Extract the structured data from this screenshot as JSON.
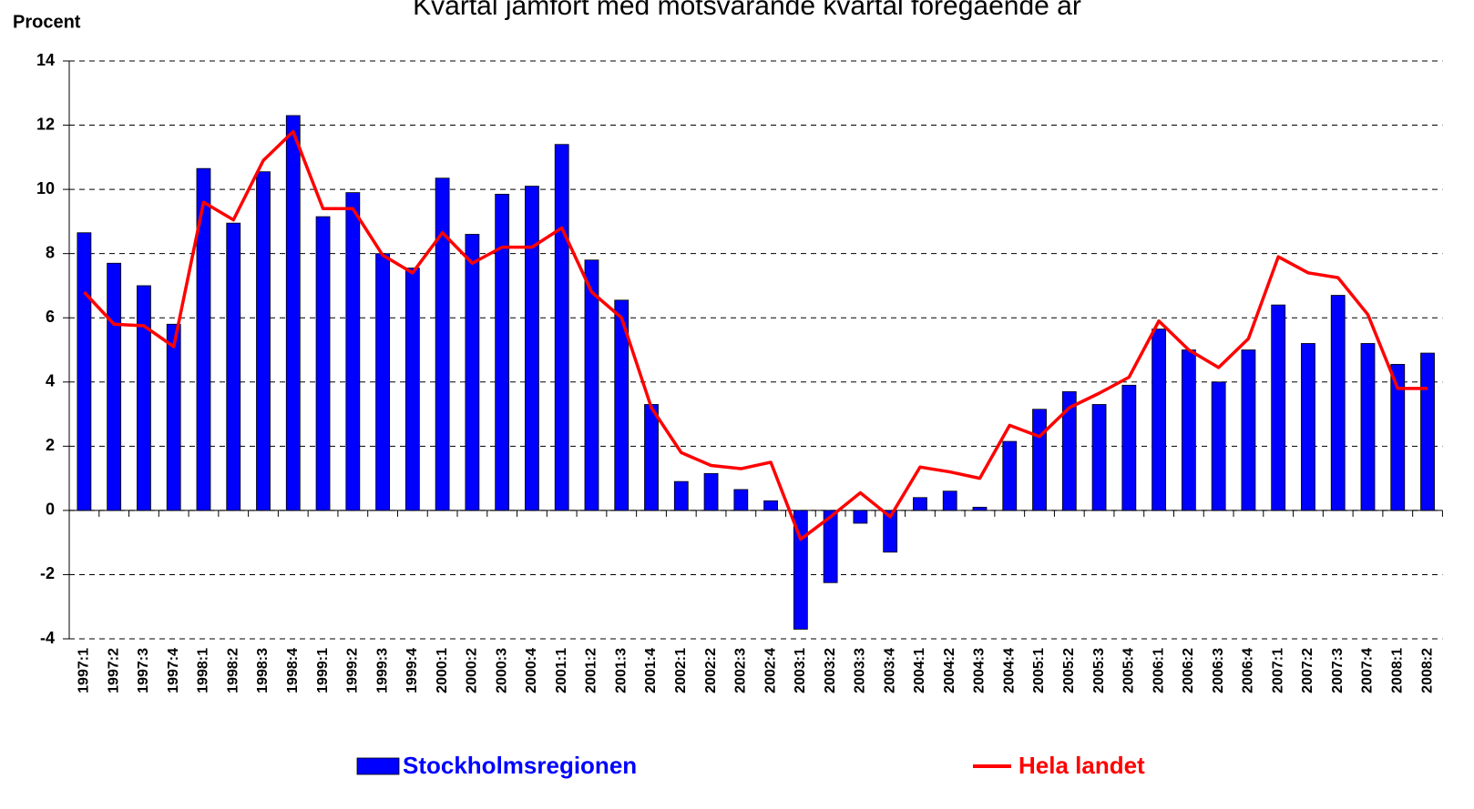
{
  "chart_data": {
    "type": "bar_line",
    "title": "Kvartal jämfört med motsvarande kvartal föregående år",
    "y_label": "Procent",
    "categories": [
      "1997:1",
      "1997:2",
      "1997:3",
      "1997:4",
      "1998:1",
      "1998:2",
      "1998:3",
      "1998:4",
      "1999:1",
      "1999:2",
      "1999:3",
      "1999:4",
      "2000:1",
      "2000:2",
      "2000:3",
      "2000:4",
      "2001:1",
      "2001:2",
      "2001:3",
      "2001:4",
      "2002:1",
      "2002:2",
      "2002:3",
      "2002:4",
      "2003:1",
      "2003:2",
      "2003:3",
      "2003:4",
      "2004:1",
      "2004:2",
      "2004:3",
      "2004:4",
      "2005:1",
      "2005:2",
      "2005:3",
      "2005:4",
      "2006:1",
      "2006:2",
      "2006:3",
      "2006:4",
      "2007:1",
      "2007:2",
      "2007:3",
      "2007:4",
      "2008:1",
      "2008:2"
    ],
    "series": [
      {
        "name": "Stockholmsregionen",
        "type": "bar",
        "color": "#0000ff",
        "values": [
          8.65,
          7.7,
          7.0,
          5.8,
          10.65,
          8.95,
          10.55,
          12.3,
          9.15,
          9.9,
          8.0,
          7.55,
          10.35,
          8.6,
          9.85,
          10.1,
          11.4,
          7.8,
          6.55,
          3.3,
          0.9,
          1.15,
          0.65,
          0.3,
          -3.7,
          -2.25,
          -0.4,
          -1.3,
          0.4,
          0.6,
          0.1,
          2.15,
          3.15,
          3.7,
          3.3,
          3.9,
          5.65,
          5.0,
          4.0,
          5.0,
          6.4,
          5.2,
          6.7,
          5.2,
          4.55,
          4.9
        ]
      },
      {
        "name": "Hela landet",
        "type": "line",
        "color": "#ff0000",
        "values": [
          6.8,
          5.8,
          5.75,
          5.1,
          9.6,
          9.05,
          10.9,
          11.8,
          9.4,
          9.4,
          7.95,
          7.4,
          8.65,
          7.7,
          8.2,
          8.2,
          8.8,
          6.8,
          6.0,
          3.2,
          1.8,
          1.4,
          1.3,
          1.5,
          -0.9,
          -0.2,
          0.55,
          -0.2,
          1.35,
          1.2,
          1.0,
          2.65,
          2.3,
          3.2,
          3.65,
          4.15,
          5.9,
          5.0,
          4.45,
          5.35,
          7.9,
          7.4,
          7.25,
          6.1,
          3.8,
          3.8
        ]
      }
    ],
    "ylim": [
      -4,
      14
    ],
    "yticks": [
      -4,
      -2,
      0,
      2,
      4,
      6,
      8,
      10,
      12,
      14
    ],
    "grid": true
  }
}
